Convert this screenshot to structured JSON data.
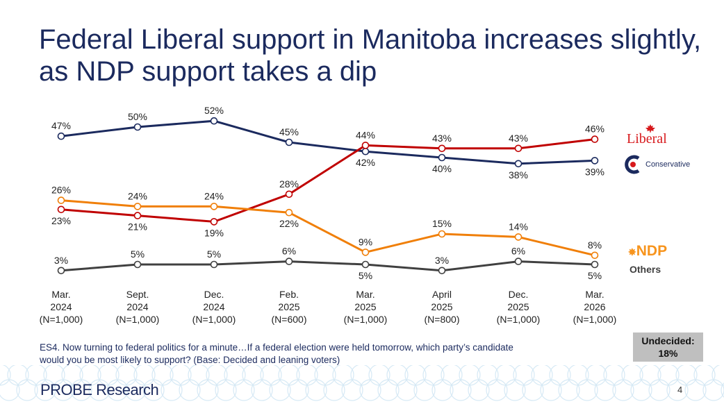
{
  "title": "Federal Liberal support in Manitoba increases slightly, as NDP support takes a dip",
  "chart_data": {
    "type": "line",
    "categories": [
      [
        "Mar.",
        "2024",
        "(N=1,000)"
      ],
      [
        "Sept.",
        "2024",
        "(N=1,000)"
      ],
      [
        "Dec.",
        "2024",
        "(N=1,000)"
      ],
      [
        "Feb.",
        "2025",
        "(N=600)"
      ],
      [
        "Mar.",
        "2025",
        "(N=1,000)"
      ],
      [
        "April",
        "2025",
        "(N=800)"
      ],
      [
        "Dec.",
        "2025",
        "(N=1,000)"
      ],
      [
        "Mar.",
        "2026",
        "(N=1,000)"
      ]
    ],
    "series": [
      {
        "name": "Conservative",
        "color": "#1b2a5e",
        "values": [
          47,
          50,
          52,
          45,
          42,
          40,
          38,
          39
        ]
      },
      {
        "name": "Liberal",
        "color": "#c00000",
        "values": [
          23,
          21,
          19,
          28,
          44,
          43,
          43,
          46
        ]
      },
      {
        "name": "NDP",
        "color": "#f07f09",
        "values": [
          26,
          24,
          24,
          22,
          9,
          15,
          14,
          8
        ]
      },
      {
        "name": "Others",
        "color": "#404040",
        "values": [
          3,
          5,
          5,
          6,
          5,
          3,
          6,
          5
        ]
      }
    ],
    "unit": "%",
    "grid": false,
    "legend_placement": "right"
  },
  "legend": {
    "liberal": "Liberal",
    "conservative": "Conservative",
    "ndp": "NDP",
    "others": "Others"
  },
  "note": "ES4. Now turning to federal politics for a minute…If a federal election were held tomorrow, which party’s candidate would you be most likely to support? (Base: Decided and leaning voters)",
  "undecided": {
    "label": "Undecided:",
    "value": "18%"
  },
  "logo": "PROBE Research",
  "page_number": "4"
}
